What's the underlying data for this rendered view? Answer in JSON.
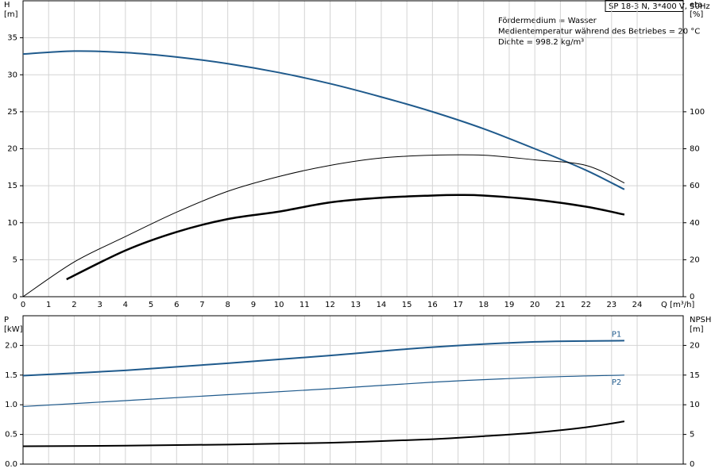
{
  "chart_data": [
    {
      "type": "line",
      "model": "SP 18-3 N, 3*400 V, 50Hz",
      "annotations": [
        "Fördermedium = Wasser",
        "Medientemperatur während des Betriebes = 20 °C",
        "Dichte = 998.2 kg/m³"
      ],
      "ylabel": [
        "H",
        "[m]"
      ],
      "y2label": [
        "eta",
        "[%]"
      ],
      "xlabel": "Q [m³/h]",
      "xlim": [
        0,
        25.8
      ],
      "xticks": [
        0,
        1,
        2,
        3,
        4,
        5,
        6,
        7,
        8,
        9,
        10,
        11,
        12,
        13,
        14,
        15,
        16,
        17,
        18,
        19,
        20,
        21,
        22,
        23,
        24
      ],
      "ylim": [
        0,
        40
      ],
      "yticks": [
        0,
        5,
        10,
        15,
        20,
        25,
        30,
        35
      ],
      "y2lim": [
        0,
        160
      ],
      "y2ticks": [
        0,
        20,
        40,
        60,
        80,
        100
      ],
      "grid": true,
      "series": [
        {
          "color": "#1f5a8c",
          "linewidth": 2,
          "x": [
            0,
            2,
            4,
            6,
            8,
            10,
            12,
            14,
            16,
            18,
            20,
            22,
            23.5
          ],
          "values": [
            32.8,
            33.2,
            33.0,
            32.4,
            31.5,
            30.3,
            28.8,
            27.0,
            25.0,
            22.7,
            20.0,
            17.1,
            14.5
          ]
        },
        {
          "color": "#000000",
          "linewidth": 1,
          "axis": "y2",
          "x": [
            0,
            2,
            4,
            6,
            8,
            10,
            12,
            14,
            16,
            18,
            20,
            22,
            23.5
          ],
          "values": [
            0,
            18.8,
            32.5,
            45.7,
            57,
            65,
            71,
            75,
            76.5,
            76.5,
            74,
            71,
            61.5
          ]
        },
        {
          "color": "#000000",
          "linewidth": 2.5,
          "axis": "y2",
          "x": [
            1.7,
            4,
            6,
            8,
            10,
            12,
            14,
            16,
            17,
            18,
            20,
            22,
            23.5
          ],
          "values": [
            9.4,
            25,
            35,
            42,
            46,
            51,
            53.5,
            54.7,
            55,
            54.7,
            52.5,
            48.7,
            44.4
          ]
        }
      ]
    },
    {
      "type": "line",
      "ylabel": [
        "P",
        "[kW]"
      ],
      "y2label": [
        "NPSH",
        "[m]"
      ],
      "xlim": [
        0,
        25.8
      ],
      "ylim": [
        0,
        2.5
      ],
      "yticks": [
        {
          "value": 0,
          "label": "0.0"
        },
        0.5,
        {
          "value": 1,
          "label": "1.0"
        },
        1.5,
        {
          "value": 2,
          "label": "2.0"
        }
      ],
      "y2lim": [
        0,
        25
      ],
      "y2ticks": [
        0,
        5,
        10,
        15,
        20
      ],
      "grid": true,
      "series": [
        {
          "name": "P1",
          "color": "#1f5a8c",
          "linewidth": 2,
          "x": [
            0,
            4,
            8,
            12,
            16,
            20,
            23.5
          ],
          "values": [
            1.49,
            1.58,
            1.7,
            1.83,
            1.97,
            2.06,
            2.08
          ]
        },
        {
          "name": "P2",
          "color": "#1f5a8c",
          "linewidth": 1.2,
          "x": [
            0,
            4,
            8,
            12,
            16,
            20,
            23.5
          ],
          "values": [
            0.97,
            1.07,
            1.17,
            1.27,
            1.38,
            1.46,
            1.5
          ]
        },
        {
          "color": "#000000",
          "linewidth": 2,
          "axis": "y2",
          "x": [
            0,
            4,
            8,
            12,
            16,
            18,
            20,
            22,
            23.5
          ],
          "values": [
            3.0,
            3.1,
            3.3,
            3.6,
            4.2,
            4.7,
            5.3,
            6.2,
            7.2
          ]
        }
      ]
    }
  ]
}
